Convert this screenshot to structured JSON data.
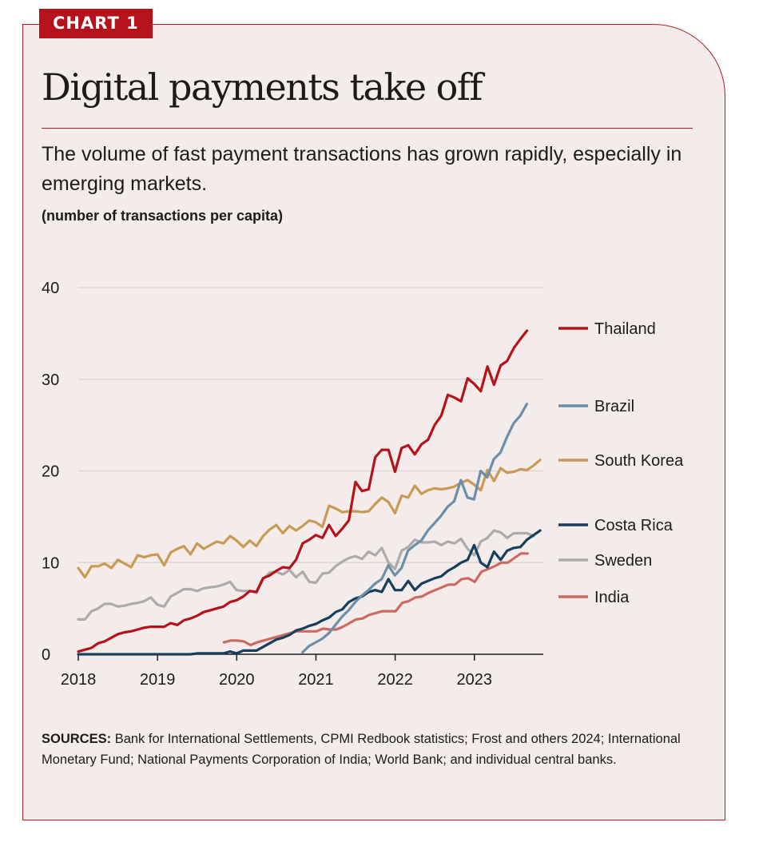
{
  "tag": "CHART 1",
  "title": "Digital payments take off",
  "subtitle": "The volume of fast payment transactions has grown rapidly, especially in emerging markets.",
  "units": "(number of transactions per capita)",
  "sources": {
    "label": "SOURCES:",
    "text": "Bank for International Settlements, CPMI Redbook statistics; Frost and others 2024; International Monetary Fund; National Payments Corporation of India; World Bank; and individual central banks."
  },
  "colors": {
    "accent": "#b5121b",
    "background": "#f4ecea",
    "grid": "#dcd6d4"
  },
  "chart_data": {
    "type": "line",
    "title": "Digital payments take off",
    "ylabel": "number of transactions per capita",
    "xlabel": "",
    "ylim": [
      0,
      40
    ],
    "xlim": [
      2018.0,
      2023.87
    ],
    "y_ticks": [
      "0",
      "10",
      "20",
      "30",
      "40"
    ],
    "x_ticks": [
      "2018",
      "2019",
      "2020",
      "2021",
      "2022",
      "2023"
    ],
    "grid": true,
    "legend_position": "right",
    "series": [
      {
        "name": "Thailand",
        "color": "#b5121b",
        "start": 2018.0,
        "step": 0.0833,
        "values": [
          0.3,
          0.5,
          0.7,
          1.2,
          1.4,
          1.8,
          2.2,
          2.4,
          2.5,
          2.7,
          2.9,
          3.0,
          3.0,
          3.0,
          3.4,
          3.2,
          3.7,
          3.9,
          4.2,
          4.6,
          4.8,
          5.0,
          5.2,
          5.7,
          5.9,
          6.3,
          6.9,
          6.8,
          8.3,
          8.6,
          9.1,
          9.5,
          9.4,
          10.3,
          12.1,
          12.5,
          13.0,
          12.7,
          14.1,
          12.9,
          13.7,
          14.6,
          18.8,
          17.8,
          18.0,
          21.5,
          22.3,
          22.3,
          19.9,
          22.5,
          22.8,
          21.8,
          22.9,
          23.4,
          25.0,
          26.0,
          28.3,
          28.0,
          27.6,
          30.1,
          29.5,
          28.7,
          31.4,
          29.4,
          31.5,
          32.0,
          33.4,
          34.4,
          35.3
        ]
      },
      {
        "name": "Brazil",
        "color": "#6b8fab",
        "start": 2020.83,
        "step": 0.0833,
        "values": [
          0.2,
          0.9,
          1.3,
          1.7,
          2.3,
          3.2,
          4.1,
          4.8,
          5.7,
          6.4,
          7.0,
          7.7,
          8.2,
          9.7,
          8.6,
          9.4,
          11.3,
          11.9,
          12.4,
          13.5,
          14.3,
          15.1,
          16.1,
          16.7,
          19.0,
          17.1,
          16.9,
          20.0,
          19.3,
          21.3,
          22.0,
          23.7,
          25.2,
          26.0,
          27.3
        ]
      },
      {
        "name": "South Korea",
        "color": "#c99a56",
        "start": 2018.0,
        "step": 0.0833,
        "values": [
          9.4,
          8.4,
          9.6,
          9.6,
          9.9,
          9.4,
          10.3,
          9.9,
          9.5,
          10.8,
          10.6,
          10.8,
          10.9,
          9.7,
          11.1,
          11.5,
          11.8,
          10.9,
          12.1,
          11.5,
          11.9,
          12.3,
          12.1,
          12.9,
          12.4,
          11.7,
          12.4,
          11.8,
          12.9,
          13.6,
          14.1,
          13.2,
          14.0,
          13.5,
          14.0,
          14.6,
          14.4,
          13.9,
          16.2,
          15.9,
          15.5,
          15.6,
          15.6,
          15.5,
          15.6,
          16.4,
          17.1,
          16.6,
          15.4,
          17.3,
          17.1,
          18.4,
          17.5,
          17.9,
          18.1,
          18.0,
          18.1,
          18.3,
          18.7,
          19.0,
          18.5,
          17.9,
          20.1,
          18.9,
          20.3,
          19.8,
          19.9,
          20.2,
          20.1,
          20.6,
          21.2
        ]
      },
      {
        "name": "Costa Rica",
        "color": "#153f5c",
        "start": 2018.0,
        "step": 0.0833,
        "values": [
          0,
          0,
          0,
          0,
          0,
          0,
          0,
          0,
          0,
          0,
          0,
          0,
          0,
          0,
          0,
          0,
          0,
          0,
          0.1,
          0.1,
          0.1,
          0.1,
          0.1,
          0.3,
          0.1,
          0.4,
          0.4,
          0.4,
          0.8,
          1.2,
          1.6,
          1.8,
          2.1,
          2.6,
          2.8,
          3.1,
          3.3,
          3.7,
          4.0,
          4.6,
          4.9,
          5.7,
          6.1,
          6.3,
          6.8,
          7.0,
          6.8,
          8.2,
          7.0,
          7.0,
          8.0,
          7.0,
          7.7,
          8.0,
          8.3,
          8.5,
          9.1,
          9.5,
          10.0,
          10.3,
          11.9,
          10.0,
          9.5,
          11.2,
          10.3,
          11.3,
          11.6,
          11.7,
          12.5,
          13.0,
          13.5
        ]
      },
      {
        "name": "Sweden",
        "color": "#ababab",
        "start": 2018.0,
        "step": 0.0833,
        "values": [
          3.8,
          3.8,
          4.7,
          5.0,
          5.5,
          5.5,
          5.2,
          5.3,
          5.5,
          5.6,
          5.8,
          6.2,
          5.4,
          5.2,
          6.3,
          6.7,
          7.1,
          7.1,
          6.9,
          7.2,
          7.3,
          7.4,
          7.6,
          7.9,
          7.0,
          6.9,
          6.9,
          6.7,
          8.2,
          8.9,
          9.0,
          8.7,
          9.2,
          8.4,
          9.0,
          7.9,
          7.8,
          8.8,
          8.9,
          9.6,
          10.1,
          10.5,
          10.7,
          10.4,
          11.2,
          10.8,
          11.6,
          10.0,
          9.3,
          11.3,
          11.7,
          12.5,
          12.2,
          12.2,
          12.3,
          11.9,
          12.3,
          12.1,
          12.6,
          11.5,
          10.8,
          12.3,
          12.7,
          13.5,
          13.3,
          12.7,
          13.2,
          13.2,
          13.2,
          12.9
        ]
      },
      {
        "name": "India",
        "color": "#cc6a62",
        "start": 2019.84,
        "step": 0.0833,
        "values": [
          1.3,
          1.5,
          1.5,
          1.4,
          1.0,
          1.3,
          1.5,
          1.7,
          1.9,
          2.1,
          2.3,
          2.5,
          2.5,
          2.5,
          2.5,
          2.8,
          2.7,
          2.7,
          3.0,
          3.4,
          3.8,
          3.9,
          4.3,
          4.5,
          4.7,
          4.7,
          4.7,
          5.6,
          5.8,
          6.2,
          6.3,
          6.7,
          7.0,
          7.3,
          7.6,
          7.6,
          8.2,
          8.3,
          7.9,
          9.0,
          9.3,
          9.6,
          10.0,
          10.0,
          10.5,
          11.0,
          11.0
        ]
      }
    ]
  }
}
